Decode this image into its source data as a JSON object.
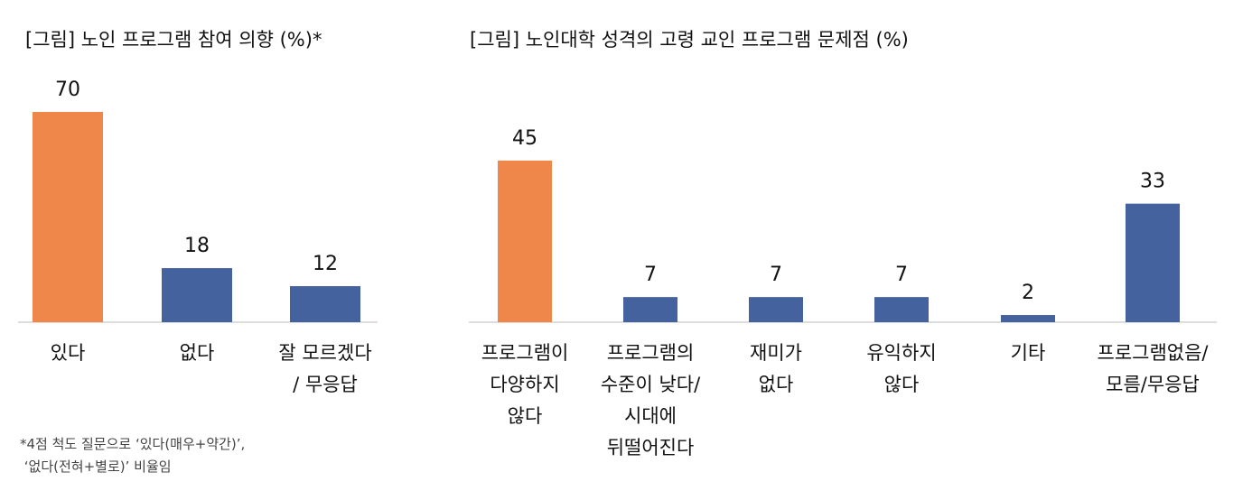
{
  "chart_data": [
    {
      "type": "bar",
      "title": "[그림] 노인 프로그램 참여 의향 (%)*",
      "categories": [
        "있다",
        "없다",
        "잘 모르겠다\n/ 무응답"
      ],
      "values": [
        70,
        18,
        12
      ],
      "colors": [
        "#f0874a",
        "#44639e",
        "#44639e"
      ],
      "note": "*4점 척도 질문으로 ‘있다(매우+약간)’,\n ‘없다(전혀+별로)’ 비율임"
    },
    {
      "type": "bar",
      "title": "[그림] 노인대학 성격의 고령 교인 프로그램 문제점 (%)",
      "categories": [
        "프로그램이\n다양하지\n않다",
        "프로그램의\n수준이 낮다/\n시대에\n뒤떨어진다",
        "재미가\n없다",
        "유익하지\n않다",
        "기타",
        "프로그램없음/\n모름/무응답"
      ],
      "values": [
        45,
        7,
        7,
        7,
        2,
        33
      ],
      "colors": [
        "#f0874a",
        "#44639e",
        "#44639e",
        "#44639e",
        "#44639e",
        "#44639e"
      ]
    }
  ]
}
